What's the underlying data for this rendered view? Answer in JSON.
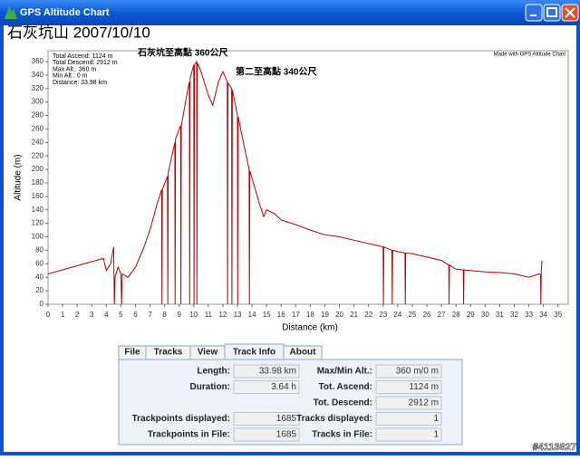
{
  "window": {
    "title": "GPS Altitude Chart"
  },
  "heading": "石灰坑山 2007/10/10",
  "chart_data": {
    "type": "line",
    "stats": [
      "Total Ascend: 1124 m",
      "Total Descend: 2912 m",
      "Max Alt.: 360 m",
      "Min Alt.: 0 m",
      "Distance: 33.98 km"
    ],
    "annotations": [
      "石灰坑至高點 360公尺",
      "第二至高點 340公尺"
    ],
    "credit": "Made with GPS Altitude Chart",
    "x_label": "Distance (km)",
    "y_label": "Altitude (m)",
    "color": "#c00000",
    "x": [
      0,
      3.8,
      4.0,
      4.3,
      4.5,
      4.55,
      4.6,
      4.8,
      5.0,
      5.05,
      5.1,
      5.5,
      6,
      6.5,
      7,
      7.5,
      7.8,
      7.82,
      7.85,
      8.2,
      8.22,
      8.25,
      8.5,
      8.7,
      8.72,
      8.75,
      9,
      9.1,
      9.12,
      9.15,
      9.6,
      9.7,
      9.72,
      9.75,
      10,
      10.02,
      10.05,
      10.2,
      10.22,
      10.25,
      10.5,
      11,
      11.3,
      11.7,
      12,
      12.3,
      12.32,
      12.35,
      12.6,
      12.62,
      12.65,
      13,
      13.02,
      13.05,
      13.5,
      13.8,
      13.82,
      13.85,
      14.5,
      14.8,
      15,
      15.5,
      16,
      17,
      18,
      19,
      20,
      21,
      22,
      23,
      23.02,
      23.05,
      23.6,
      23.62,
      23.65,
      24,
      24.5,
      24.52,
      24.55,
      25,
      26,
      27,
      27.5,
      27.52,
      27.55,
      28,
      28.5,
      28.52,
      28.55,
      29,
      30,
      31,
      32,
      33,
      33.7,
      33.8,
      33.82,
      33.85,
      33.9
    ],
    "values": [
      45,
      68,
      50,
      60,
      85,
      0,
      40,
      55,
      45,
      0,
      45,
      40,
      55,
      80,
      110,
      150,
      170,
      0,
      170,
      190,
      0,
      195,
      220,
      240,
      0,
      245,
      260,
      265,
      0,
      265,
      320,
      330,
      0,
      335,
      355,
      0,
      355,
      360,
      0,
      358,
      345,
      310,
      295,
      330,
      345,
      330,
      0,
      328,
      320,
      0,
      318,
      280,
      0,
      278,
      230,
      200,
      0,
      198,
      150,
      130,
      140,
      135,
      125,
      118,
      110,
      103,
      100,
      95,
      90,
      85,
      0,
      85,
      80,
      0,
      80,
      78,
      76,
      0,
      76,
      75,
      70,
      65,
      58,
      0,
      58,
      52,
      51,
      0,
      51,
      50,
      48,
      47,
      45,
      40,
      45,
      44,
      0,
      50,
      65
    ],
    "xlim": [
      0,
      35.7
    ],
    "ylim": [
      0,
      376
    ],
    "xticks": [
      0,
      1,
      2,
      3,
      4,
      5,
      6,
      7,
      8,
      9,
      10,
      11,
      12,
      13,
      14,
      15,
      16,
      17,
      18,
      19,
      20,
      21,
      22,
      23,
      24,
      25,
      26,
      27,
      28,
      29,
      30,
      31,
      32,
      33,
      34,
      35
    ],
    "yticks": [
      0,
      20,
      40,
      60,
      80,
      100,
      120,
      140,
      160,
      180,
      200,
      220,
      240,
      260,
      280,
      300,
      320,
      340,
      360
    ]
  },
  "tabs": [
    "File",
    "Tracks",
    "View",
    "Track Info",
    "About"
  ],
  "info": {
    "left": [
      {
        "label": "Length:",
        "value": "33.98 km"
      },
      {
        "label": "Duration:",
        "value": "3.64 h"
      },
      {
        "label": "Trackpoints displayed:",
        "value": "1685"
      },
      {
        "label": "Trackpoints in File:",
        "value": "1685"
      }
    ],
    "right": [
      {
        "label": "Max/Min Alt.:",
        "value": "360 m/0 m"
      },
      {
        "label": "Tot. Ascend:",
        "value": "1124 m"
      },
      {
        "label": "Tot. Descend:",
        "value": "2912 m"
      },
      {
        "label": "Tracks displayed:",
        "value": "1"
      },
      {
        "label": "Tracks in File:",
        "value": "1"
      }
    ]
  },
  "watermark": "#4113827"
}
